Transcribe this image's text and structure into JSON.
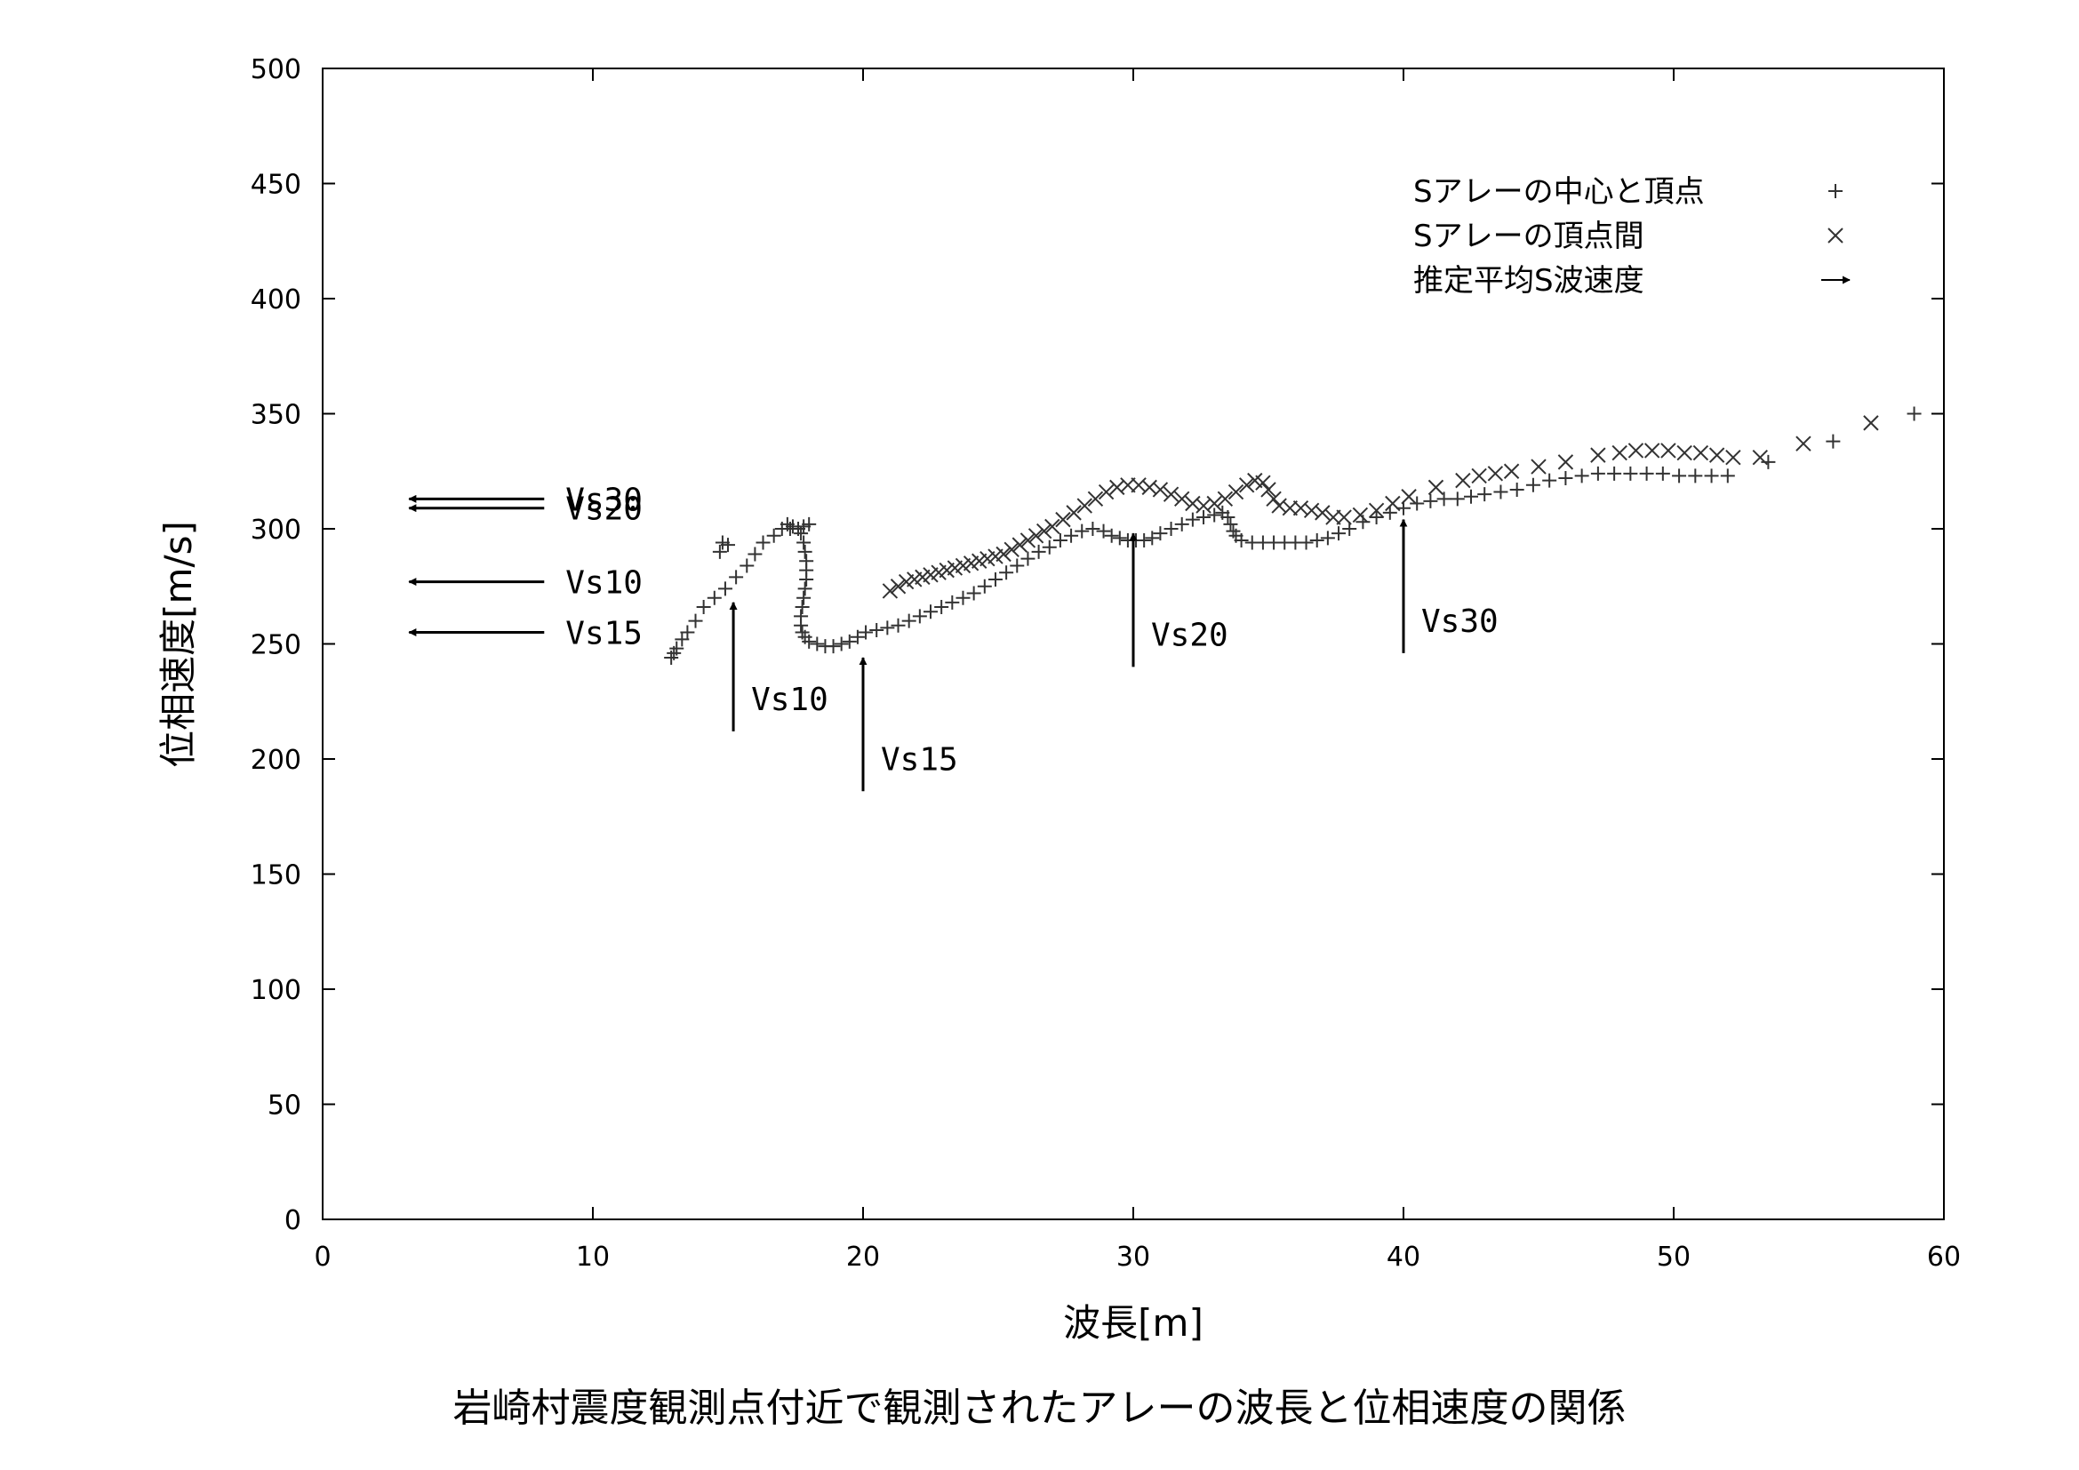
{
  "caption": "岩崎村震度観測点付近で観測されたアレーの波長と位相速度の関係",
  "chart_data": {
    "type": "scatter",
    "xlabel": "波長[m]",
    "ylabel": "位相速度[m/s]",
    "xlim": [
      0,
      60
    ],
    "ylim": [
      0,
      500
    ],
    "xticks": [
      "0",
      "10",
      "20",
      "30",
      "40",
      "50",
      "60"
    ],
    "yticks": [
      "0",
      "50",
      "100",
      "150",
      "200",
      "250",
      "300",
      "350",
      "400",
      "450",
      "500"
    ],
    "legend_position": "top-right",
    "legend": [
      {
        "label": "Sアレーの中心と頂点",
        "symbol": "+"
      },
      {
        "label": "Sアレーの頂点間",
        "symbol": "×"
      },
      {
        "label": "推定平均S波速度",
        "symbol": "→"
      }
    ],
    "series": [
      {
        "name": "Sアレーの中心と頂点",
        "marker": "plus",
        "points": [
          [
            12.9,
            244
          ],
          [
            13.0,
            246
          ],
          [
            13.1,
            248
          ],
          [
            13.3,
            252
          ],
          [
            13.5,
            255
          ],
          [
            13.8,
            260
          ],
          [
            14.1,
            266
          ],
          [
            14.5,
            270
          ],
          [
            14.9,
            274
          ],
          [
            15.3,
            279
          ],
          [
            15.7,
            284
          ],
          [
            16.0,
            289
          ],
          [
            16.3,
            294
          ],
          [
            16.7,
            297
          ],
          [
            17.0,
            300
          ],
          [
            17.2,
            302
          ],
          [
            17.4,
            301
          ],
          [
            17.6,
            300
          ],
          [
            17.7,
            298
          ],
          [
            17.8,
            294
          ],
          [
            17.85,
            290
          ],
          [
            17.9,
            286
          ],
          [
            17.9,
            282
          ],
          [
            17.9,
            278
          ],
          [
            17.85,
            274
          ],
          [
            17.8,
            270
          ],
          [
            17.75,
            266
          ],
          [
            17.7,
            262
          ],
          [
            17.7,
            258
          ],
          [
            17.75,
            255
          ],
          [
            17.85,
            253
          ],
          [
            18.0,
            251
          ],
          [
            18.3,
            250
          ],
          [
            18.6,
            249
          ],
          [
            18.9,
            249
          ],
          [
            19.2,
            250
          ],
          [
            19.5,
            251
          ],
          [
            19.8,
            253
          ],
          [
            20.1,
            255
          ],
          [
            20.5,
            256
          ],
          [
            20.9,
            257
          ],
          [
            21.3,
            258
          ],
          [
            21.7,
            260
          ],
          [
            22.1,
            262
          ],
          [
            22.5,
            264
          ],
          [
            22.9,
            266
          ],
          [
            23.3,
            268
          ],
          [
            23.7,
            270
          ],
          [
            24.1,
            272
          ],
          [
            24.5,
            275
          ],
          [
            24.9,
            278
          ],
          [
            25.3,
            281
          ],
          [
            25.7,
            284
          ],
          [
            26.1,
            287
          ],
          [
            26.5,
            290
          ],
          [
            26.9,
            292
          ],
          [
            27.3,
            295
          ],
          [
            27.7,
            297
          ],
          [
            28.1,
            299
          ],
          [
            28.5,
            300
          ],
          [
            28.9,
            299
          ],
          [
            29.2,
            297
          ],
          [
            29.5,
            296
          ],
          [
            29.8,
            295
          ],
          [
            30.1,
            295
          ],
          [
            30.4,
            295
          ],
          [
            30.7,
            296
          ],
          [
            31.0,
            298
          ],
          [
            31.4,
            300
          ],
          [
            31.8,
            302
          ],
          [
            32.2,
            304
          ],
          [
            32.6,
            305
          ],
          [
            33.0,
            306
          ],
          [
            33.3,
            307
          ],
          [
            33.5,
            305
          ],
          [
            33.6,
            302
          ],
          [
            33.7,
            299
          ],
          [
            33.8,
            297
          ],
          [
            34.0,
            295
          ],
          [
            34.4,
            294
          ],
          [
            34.8,
            294
          ],
          [
            35.2,
            294
          ],
          [
            35.6,
            294
          ],
          [
            36.0,
            294
          ],
          [
            36.4,
            294
          ],
          [
            36.8,
            295
          ],
          [
            37.2,
            296
          ],
          [
            37.6,
            298
          ],
          [
            38.0,
            300
          ],
          [
            38.5,
            303
          ],
          [
            39.0,
            305
          ],
          [
            39.5,
            307
          ],
          [
            40.0,
            309
          ],
          [
            40.5,
            311
          ],
          [
            41.0,
            312
          ],
          [
            41.5,
            313
          ],
          [
            42.0,
            313
          ],
          [
            42.5,
            314
          ],
          [
            43.0,
            315
          ],
          [
            43.6,
            316
          ],
          [
            44.2,
            317
          ],
          [
            44.8,
            319
          ],
          [
            45.4,
            321
          ],
          [
            46.0,
            322
          ],
          [
            46.6,
            323
          ],
          [
            47.2,
            324
          ],
          [
            47.8,
            324
          ],
          [
            48.4,
            324
          ],
          [
            49.0,
            324
          ],
          [
            49.6,
            324
          ],
          [
            50.2,
            323
          ],
          [
            50.8,
            323
          ],
          [
            51.4,
            323
          ],
          [
            52.0,
            323
          ],
          [
            53.5,
            329
          ],
          [
            55.9,
            338
          ],
          [
            58.9,
            350
          ],
          [
            14.7,
            290
          ],
          [
            14.8,
            294
          ],
          [
            15.0,
            293
          ],
          [
            17.3,
            300
          ],
          [
            17.8,
            301
          ],
          [
            18.0,
            302
          ]
        ]
      },
      {
        "name": "Sアレーの頂点間",
        "marker": "cross",
        "points": [
          [
            21.0,
            273
          ],
          [
            21.3,
            275
          ],
          [
            21.6,
            277
          ],
          [
            21.9,
            278
          ],
          [
            22.2,
            279
          ],
          [
            22.5,
            280
          ],
          [
            22.8,
            281
          ],
          [
            23.1,
            282
          ],
          [
            23.4,
            283
          ],
          [
            23.7,
            284
          ],
          [
            24.0,
            285
          ],
          [
            24.3,
            286
          ],
          [
            24.6,
            287
          ],
          [
            24.9,
            288
          ],
          [
            25.2,
            289
          ],
          [
            25.5,
            291
          ],
          [
            25.8,
            293
          ],
          [
            26.1,
            295
          ],
          [
            26.4,
            297
          ],
          [
            26.7,
            299
          ],
          [
            27.0,
            301
          ],
          [
            27.4,
            304
          ],
          [
            27.8,
            307
          ],
          [
            28.2,
            310
          ],
          [
            28.6,
            313
          ],
          [
            29.0,
            316
          ],
          [
            29.4,
            318
          ],
          [
            29.8,
            319
          ],
          [
            30.2,
            319
          ],
          [
            30.6,
            318
          ],
          [
            31.0,
            317
          ],
          [
            31.4,
            315
          ],
          [
            31.8,
            313
          ],
          [
            32.2,
            311
          ],
          [
            32.6,
            310
          ],
          [
            33.0,
            311
          ],
          [
            33.4,
            313
          ],
          [
            33.8,
            316
          ],
          [
            34.2,
            319
          ],
          [
            34.5,
            321
          ],
          [
            34.8,
            320
          ],
          [
            35.0,
            317
          ],
          [
            35.2,
            313
          ],
          [
            35.4,
            310
          ],
          [
            35.8,
            309
          ],
          [
            36.2,
            309
          ],
          [
            36.6,
            308
          ],
          [
            37.0,
            307
          ],
          [
            37.4,
            305
          ],
          [
            37.8,
            305
          ],
          [
            38.4,
            306
          ],
          [
            39.0,
            308
          ],
          [
            39.6,
            311
          ],
          [
            40.2,
            314
          ],
          [
            41.2,
            318
          ],
          [
            42.2,
            321
          ],
          [
            42.8,
            323
          ],
          [
            43.4,
            324
          ],
          [
            44.0,
            325
          ],
          [
            45.0,
            327
          ],
          [
            46.0,
            329
          ],
          [
            47.2,
            332
          ],
          [
            48.0,
            333
          ],
          [
            48.6,
            334
          ],
          [
            49.2,
            334
          ],
          [
            49.8,
            334
          ],
          [
            50.4,
            333
          ],
          [
            51.0,
            333
          ],
          [
            51.6,
            332
          ],
          [
            52.2,
            331
          ],
          [
            53.2,
            331
          ],
          [
            54.8,
            337
          ],
          [
            57.3,
            346
          ]
        ]
      }
    ],
    "annotations": [
      {
        "label": "Vs10",
        "kind": "vertical-arrow",
        "x": 15.2,
        "y_from": 212,
        "y_to": 268
      },
      {
        "label": "Vs15",
        "kind": "vertical-arrow",
        "x": 20.0,
        "y_from": 186,
        "y_to": 244
      },
      {
        "label": "Vs20",
        "kind": "vertical-arrow",
        "x": 30.0,
        "y_from": 240,
        "y_to": 298
      },
      {
        "label": "Vs30",
        "kind": "vertical-arrow",
        "x": 40.0,
        "y_from": 246,
        "y_to": 304
      },
      {
        "label": "Vs30",
        "kind": "horizontal-arrow",
        "y": 313,
        "x_from": 8.2,
        "x_to": 3.2
      },
      {
        "label": "Vs20",
        "kind": "horizontal-arrow",
        "y": 309,
        "x_from": 8.2,
        "x_to": 3.2
      },
      {
        "label": "Vs10",
        "kind": "horizontal-arrow",
        "y": 277,
        "x_from": 8.2,
        "x_to": 3.2
      },
      {
        "label": "Vs15",
        "kind": "horizontal-arrow",
        "y": 255,
        "x_from": 8.2,
        "x_to": 3.2
      }
    ]
  }
}
